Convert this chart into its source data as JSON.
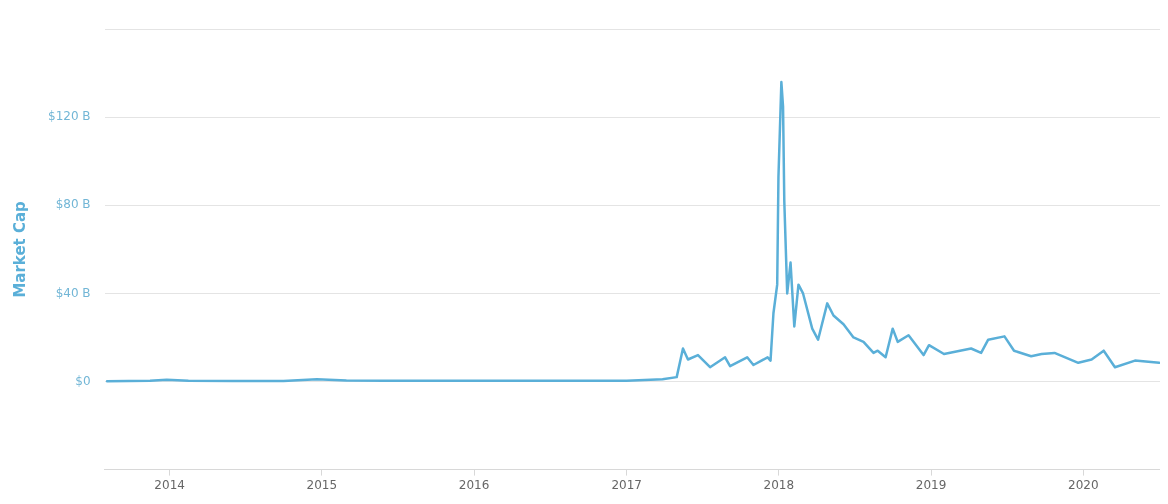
{
  "chart_data": {
    "type": "line",
    "ylabel": "Market Cap",
    "x": [
      "2013-08-04",
      "2013-11-15",
      "2013-12-25",
      "2014-02-15",
      "2014-06-01",
      "2014-10-01",
      "2014-12-20",
      "2015-03-01",
      "2015-06-01",
      "2015-09-01",
      "2016-01-01",
      "2016-06-01",
      "2016-10-01",
      "2017-01-01",
      "2017-03-28",
      "2017-05-01",
      "2017-05-16",
      "2017-05-28",
      "2017-06-21",
      "2017-07-20",
      "2017-08-25",
      "2017-09-06",
      "2017-10-17",
      "2017-11-01",
      "2017-12-05",
      "2017-12-12",
      "2017-12-19",
      "2017-12-28",
      "2017-12-31",
      "2018-01-07",
      "2018-01-11",
      "2018-01-14",
      "2018-01-17",
      "2018-01-21",
      "2018-01-29",
      "2018-02-07",
      "2018-02-17",
      "2018-02-28",
      "2018-03-22",
      "2018-04-05",
      "2018-04-27",
      "2018-05-12",
      "2018-06-05",
      "2018-06-29",
      "2018-07-23",
      "2018-08-16",
      "2018-08-26",
      "2018-09-14",
      "2018-10-01",
      "2018-10-13",
      "2018-11-08",
      "2018-12-14",
      "2018-12-27",
      "2019-02-01",
      "2019-04-07",
      "2019-05-01",
      "2019-05-18",
      "2019-06-26",
      "2019-07-19",
      "2019-08-29",
      "2019-09-23",
      "2019-10-24",
      "2019-12-20",
      "2020-01-21",
      "2020-02-19",
      "2020-03-17",
      "2020-05-04",
      "2020-07-01"
    ],
    "series": [
      {
        "color": "#5aafd8",
        "values": [
          0.1,
          0.3,
          0.8,
          0.4,
          0.2,
          0.2,
          1,
          0.5,
          0.3,
          0.3,
          0.3,
          0.3,
          0.3,
          0.3,
          1,
          2,
          15,
          10,
          12,
          6.5,
          11,
          7,
          11,
          7.5,
          11,
          9.5,
          31,
          44,
          93,
          136,
          125,
          82,
          64,
          40,
          54,
          25,
          44,
          40,
          24,
          19,
          35.5,
          30,
          26,
          20,
          18,
          13,
          14,
          11,
          24,
          18,
          21,
          12,
          16.5,
          12.5,
          15,
          13,
          19,
          20.5,
          14,
          11.5,
          12.5,
          13,
          8.5,
          10,
          14,
          6.5,
          9.5,
          8.5
        ]
      }
    ],
    "xlim": [
      "2013-07-29",
      "2020-07-03"
    ],
    "xticks": [
      "2014",
      "2015",
      "2016",
      "2017",
      "2018",
      "2019",
      "2020"
    ],
    "ylim": [
      -40,
      160
    ],
    "yticks": [
      {
        "value": -40,
        "label": null
      },
      {
        "value": 0,
        "label": "$0"
      },
      {
        "value": 40,
        "label": "$40 B"
      },
      {
        "value": 80,
        "label": "$80 B"
      },
      {
        "value": 120,
        "label": "$120 B"
      },
      {
        "value": 160,
        "label": null
      }
    ],
    "grid": "y",
    "legend": false,
    "marker": "none",
    "line_style": "solid"
  }
}
